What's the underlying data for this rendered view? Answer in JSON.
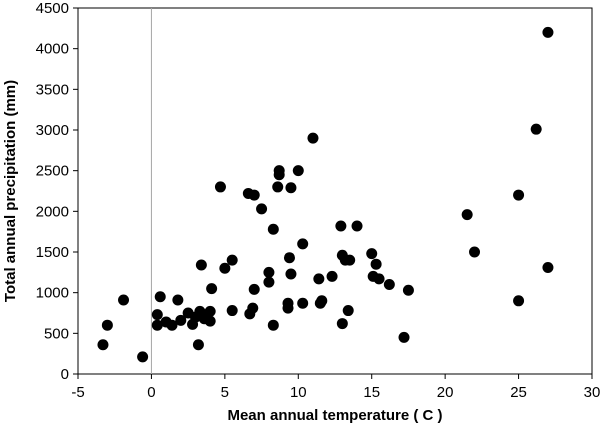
{
  "chart_data": {
    "type": "scatter",
    "xlabel": "Mean annual temperature ( C )",
    "ylabel": "Total annual precipitation (mm)",
    "xlim": [
      -5,
      30
    ],
    "ylim": [
      0,
      4500
    ],
    "xticks": [
      -5,
      0,
      5,
      10,
      15,
      20,
      25,
      30
    ],
    "yticks": [
      0,
      500,
      1000,
      1500,
      2000,
      2500,
      3000,
      3500,
      4000,
      4500
    ],
    "grid": false,
    "legend": "none",
    "zero_line": "vertical at x = 0",
    "marker_color": "#000000",
    "points": [
      {
        "x": -3.3,
        "y": 360
      },
      {
        "x": -3.0,
        "y": 600
      },
      {
        "x": -1.9,
        "y": 910
      },
      {
        "x": -0.6,
        "y": 210
      },
      {
        "x": 0.4,
        "y": 600
      },
      {
        "x": 0.4,
        "y": 730
      },
      {
        "x": 0.6,
        "y": 950
      },
      {
        "x": 1.0,
        "y": 640
      },
      {
        "x": 1.4,
        "y": 600
      },
      {
        "x": 1.8,
        "y": 910
      },
      {
        "x": 2.0,
        "y": 660
      },
      {
        "x": 2.5,
        "y": 750
      },
      {
        "x": 2.8,
        "y": 610
      },
      {
        "x": 3.0,
        "y": 700
      },
      {
        "x": 3.2,
        "y": 360
      },
      {
        "x": 3.3,
        "y": 770
      },
      {
        "x": 3.4,
        "y": 1340
      },
      {
        "x": 3.6,
        "y": 680
      },
      {
        "x": 3.8,
        "y": 730
      },
      {
        "x": 4.0,
        "y": 650
      },
      {
        "x": 4.0,
        "y": 770
      },
      {
        "x": 4.1,
        "y": 1050
      },
      {
        "x": 4.7,
        "y": 2300
      },
      {
        "x": 5.0,
        "y": 1300
      },
      {
        "x": 5.5,
        "y": 780
      },
      {
        "x": 5.5,
        "y": 1400
      },
      {
        "x": 6.6,
        "y": 2220
      },
      {
        "x": 6.7,
        "y": 740
      },
      {
        "x": 6.9,
        "y": 810
      },
      {
        "x": 7.0,
        "y": 1040
      },
      {
        "x": 7.0,
        "y": 2200
      },
      {
        "x": 7.5,
        "y": 2030
      },
      {
        "x": 8.0,
        "y": 1130
      },
      {
        "x": 8.0,
        "y": 1250
      },
      {
        "x": 8.3,
        "y": 1780
      },
      {
        "x": 8.3,
        "y": 600
      },
      {
        "x": 8.6,
        "y": 2300
      },
      {
        "x": 8.7,
        "y": 2450
      },
      {
        "x": 8.7,
        "y": 2500
      },
      {
        "x": 9.3,
        "y": 810
      },
      {
        "x": 9.3,
        "y": 870
      },
      {
        "x": 9.4,
        "y": 1430
      },
      {
        "x": 9.5,
        "y": 1230
      },
      {
        "x": 9.5,
        "y": 2290
      },
      {
        "x": 10.0,
        "y": 2500
      },
      {
        "x": 10.3,
        "y": 1600
      },
      {
        "x": 10.3,
        "y": 870
      },
      {
        "x": 11.0,
        "y": 2900
      },
      {
        "x": 11.4,
        "y": 1170
      },
      {
        "x": 11.5,
        "y": 870
      },
      {
        "x": 11.6,
        "y": 900
      },
      {
        "x": 12.3,
        "y": 1200
      },
      {
        "x": 12.9,
        "y": 1820
      },
      {
        "x": 13.0,
        "y": 1460
      },
      {
        "x": 13.0,
        "y": 620
      },
      {
        "x": 13.2,
        "y": 1400
      },
      {
        "x": 13.4,
        "y": 780
      },
      {
        "x": 13.5,
        "y": 1400
      },
      {
        "x": 14.0,
        "y": 1820
      },
      {
        "x": 15.0,
        "y": 1480
      },
      {
        "x": 15.1,
        "y": 1200
      },
      {
        "x": 15.3,
        "y": 1350
      },
      {
        "x": 15.5,
        "y": 1170
      },
      {
        "x": 16.2,
        "y": 1100
      },
      {
        "x": 17.2,
        "y": 450
      },
      {
        "x": 17.5,
        "y": 1030
      },
      {
        "x": 21.5,
        "y": 1960
      },
      {
        "x": 22.0,
        "y": 1500
      },
      {
        "x": 25.0,
        "y": 2200
      },
      {
        "x": 25.0,
        "y": 900
      },
      {
        "x": 26.2,
        "y": 3010
      },
      {
        "x": 27.0,
        "y": 4200
      },
      {
        "x": 27.0,
        "y": 1310
      }
    ]
  }
}
